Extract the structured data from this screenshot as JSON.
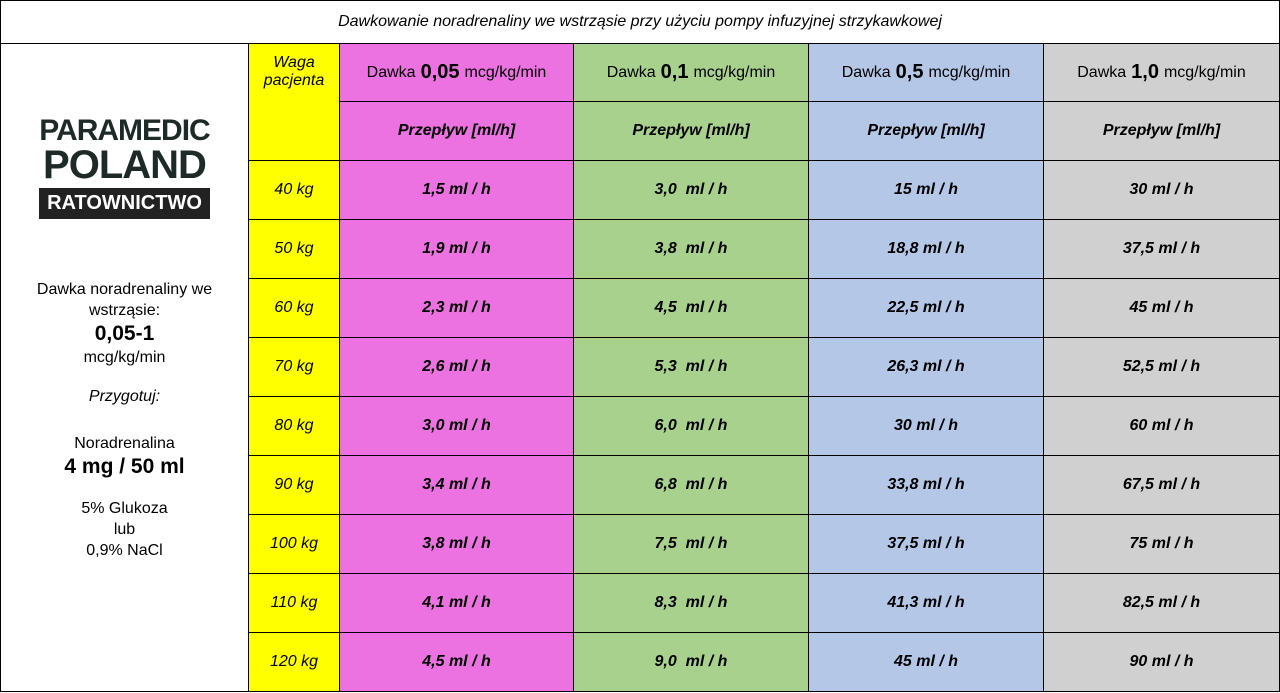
{
  "title": "Dawkowanie noradrenaliny we wstrząsie przy użyciu pompy infuzyjnej strzykawkowej",
  "logo": {
    "line1": "PARAMEDIC",
    "line2": "POLAND",
    "line3": "RATOWNICTWO"
  },
  "info": {
    "label": "Dawka noradrenaliny we wstrząsie:",
    "range": "0,05-1",
    "unit": "mcg/kg/min",
    "prepare": "Przygotuj:",
    "drug": "Noradrenalina",
    "concentration": "4 mg / 50 ml",
    "diluent1": "5% Glukoza",
    "or": "lub",
    "diluent2": "0,9% NaCl"
  },
  "table": {
    "weight_header": "Waga pacjenta",
    "columns": [
      {
        "prefix": "Dawka",
        "dose": "0,05",
        "unit": "mcg/kg/min",
        "sub": "Przepływ [ml/h]",
        "color": "#eb72e0"
      },
      {
        "prefix": "Dawka",
        "dose": "0,1",
        "unit": "mcg/kg/min",
        "sub": "Przepływ [ml/h]",
        "color": "#a9d18e"
      },
      {
        "prefix": "Dawka",
        "dose": "0,5",
        "unit": "mcg/kg/min",
        "sub": "Przepływ [ml/h]",
        "color": "#b4c7e7"
      },
      {
        "prefix": "Dawka",
        "dose": "1,0",
        "unit": "mcg/kg/min",
        "sub": "Przepływ [ml/h]",
        "color": "#d0d0d0"
      }
    ],
    "weight_color": "#ffff00",
    "rows": [
      {
        "weight": "40 kg",
        "values": [
          "1,5 ml / h",
          "3,0  ml / h",
          "15 ml / h",
          "30 ml / h"
        ]
      },
      {
        "weight": "50 kg",
        "values": [
          "1,9 ml / h",
          "3,8  ml / h",
          "18,8 ml / h",
          "37,5 ml / h"
        ]
      },
      {
        "weight": "60 kg",
        "values": [
          "2,3 ml / h",
          "4,5  ml / h",
          "22,5 ml / h",
          "45 ml / h"
        ]
      },
      {
        "weight": "70 kg",
        "values": [
          "2,6 ml / h",
          "5,3  ml / h",
          "26,3 ml / h",
          "52,5 ml / h"
        ]
      },
      {
        "weight": "80 kg",
        "values": [
          "3,0 ml / h",
          "6,0  ml / h",
          "30 ml / h",
          "60 ml / h"
        ]
      },
      {
        "weight": "90 kg",
        "values": [
          "3,4 ml / h",
          "6,8  ml / h",
          "33,8 ml / h",
          "67,5 ml / h"
        ]
      },
      {
        "weight": "100 kg",
        "values": [
          "3,8 ml / h",
          "7,5  ml / h",
          "37,5 ml / h",
          "75 ml / h"
        ]
      },
      {
        "weight": "110 kg",
        "values": [
          "4,1 ml / h",
          "8,3  ml / h",
          "41,3 ml / h",
          "82,5 ml / h"
        ]
      },
      {
        "weight": "120 kg",
        "values": [
          "4,5 ml / h",
          "9,0  ml / h",
          "45 ml / h",
          "90 ml / h"
        ]
      }
    ]
  }
}
